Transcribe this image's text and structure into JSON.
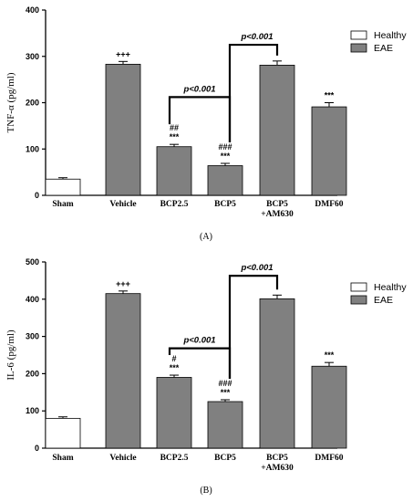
{
  "chart_data": [
    {
      "type": "bar",
      "panel_label": "(A)",
      "ylabel": "TNF-α (pg/ml)",
      "ylim": [
        0,
        400
      ],
      "yticks": [
        "0",
        "100",
        "200",
        "300",
        "400"
      ],
      "categories": [
        "Sham",
        "Vehicle",
        "BCP2.5",
        "BCP5",
        "BCP5\n+AM630",
        "DMF60"
      ],
      "values": [
        35,
        283,
        105,
        64,
        281,
        191
      ],
      "errors": [
        3,
        6,
        5,
        5,
        9,
        9
      ],
      "groups": [
        "Healthy",
        "EAE",
        "EAE",
        "EAE",
        "EAE",
        "EAE"
      ],
      "annotations": [
        {
          "bar": 1,
          "lines": [
            "+++"
          ]
        },
        {
          "bar": 2,
          "lines": [
            "##",
            "***"
          ]
        },
        {
          "bar": 3,
          "lines": [
            "###",
            "***"
          ]
        },
        {
          "bar": 5,
          "lines": [
            "***"
          ]
        }
      ],
      "brackets": [
        {
          "from": 2,
          "to": 3,
          "label": "p<0.001"
        },
        {
          "from": 3,
          "to": 4,
          "label": "p<0.001"
        }
      ],
      "legend": {
        "position": "top-right",
        "entries": [
          "Healthy",
          "EAE"
        ]
      }
    },
    {
      "type": "bar",
      "panel_label": "(B)",
      "ylabel": "IL-6 (pg/ml)",
      "ylim": [
        0,
        500
      ],
      "yticks": [
        "0",
        "100",
        "200",
        "300",
        "400",
        "500"
      ],
      "categories": [
        "Sham",
        "Vehicle",
        "BCP2.5",
        "BCP5",
        "BCP5\n+AM630",
        "DMF60"
      ],
      "values": [
        80,
        415,
        190,
        125,
        401,
        220
      ],
      "errors": [
        4,
        7,
        6,
        5,
        10,
        10
      ],
      "groups": [
        "Healthy",
        "EAE",
        "EAE",
        "EAE",
        "EAE",
        "EAE"
      ],
      "annotations": [
        {
          "bar": 1,
          "lines": [
            "+++"
          ]
        },
        {
          "bar": 2,
          "lines": [
            "#",
            "***"
          ]
        },
        {
          "bar": 3,
          "lines": [
            "###",
            "***"
          ]
        },
        {
          "bar": 5,
          "lines": [
            "***"
          ]
        }
      ],
      "brackets": [
        {
          "from": 2,
          "to": 3,
          "label": "p<0.001"
        },
        {
          "from": 3,
          "to": 4,
          "label": "p<0.001"
        }
      ],
      "legend": {
        "position": "top-right",
        "entries": [
          "Healthy",
          "EAE"
        ]
      }
    }
  ],
  "colors": {
    "healthy": "#ffffff",
    "eae": "#808080",
    "axis": "#000000"
  }
}
